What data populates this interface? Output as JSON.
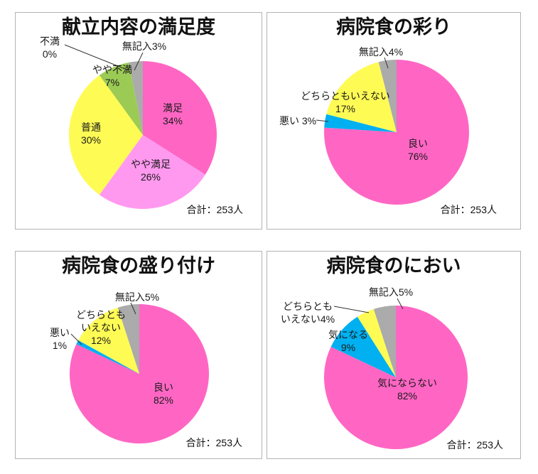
{
  "accent_colors": {
    "pink": "#FF66C4",
    "light_pink": "#FF99F0",
    "yellow": "#FFFB55",
    "green": "#9BCB55",
    "blue": "#00B0F0",
    "gray": "#ABABAB"
  },
  "chart_data": [
    {
      "type": "pie",
      "title": "献立内容の満足度",
      "total": "合計：253人",
      "legend_position": "none",
      "slices": [
        {
          "name": "manzoku",
          "label": "満足",
          "value": 34,
          "color": "#FF66C4",
          "lines": [
            "満足",
            "34%"
          ]
        },
        {
          "name": "yaya-manzoku",
          "label": "やや満足",
          "value": 26,
          "color": "#FF99F0",
          "lines": [
            "やや満足",
            "26%"
          ]
        },
        {
          "name": "futsu",
          "label": "普通",
          "value": 30,
          "color": "#FFFB55",
          "lines": [
            "普通",
            "30%"
          ]
        },
        {
          "name": "yaya-fuman",
          "label": "やや不満",
          "value": 7,
          "color": "#9BCB55",
          "lines": [
            "やや不満",
            "7%"
          ]
        },
        {
          "name": "fuman",
          "label": "不満",
          "value": 0,
          "color": "#00B0F0",
          "lines": [
            "不満",
            "0%"
          ]
        },
        {
          "name": "mukinyu",
          "label": "無記入",
          "value": 3,
          "color": "#ABABAB",
          "lines": [
            "無記入3%"
          ]
        }
      ]
    },
    {
      "type": "pie",
      "title": "病院食の彩り",
      "total": "合計：253人",
      "legend_position": "none",
      "slices": [
        {
          "name": "yoi",
          "label": "良い",
          "value": 76,
          "color": "#FF66C4",
          "lines": [
            "良い",
            "76%"
          ]
        },
        {
          "name": "warui",
          "label": "悪い",
          "value": 3,
          "color": "#00B0F0",
          "lines": [
            "悪い 3%"
          ]
        },
        {
          "name": "dochira",
          "label": "どちらともいえない",
          "value": 17,
          "color": "#FFFB55",
          "lines": [
            "どちらともいえない",
            "17%"
          ]
        },
        {
          "name": "mukinyu",
          "label": "無記入",
          "value": 4,
          "color": "#ABABAB",
          "lines": [
            "無記入4%"
          ]
        }
      ]
    },
    {
      "type": "pie",
      "title": "病院食の盛り付け",
      "total": "合計：253人",
      "legend_position": "none",
      "slices": [
        {
          "name": "yoi",
          "label": "良い",
          "value": 82,
          "color": "#FF66C4",
          "lines": [
            "良い",
            "82%"
          ]
        },
        {
          "name": "warui",
          "label": "悪い",
          "value": 1,
          "color": "#00B0F0",
          "lines": [
            "悪い",
            "1%"
          ]
        },
        {
          "name": "dochira",
          "label": "どちらともいえない",
          "value": 12,
          "color": "#FFFB55",
          "lines": [
            "どちらとも",
            "いえない",
            "12%"
          ]
        },
        {
          "name": "mukinyu",
          "label": "無記入",
          "value": 5,
          "color": "#ABABAB",
          "lines": [
            "無記入5%"
          ]
        }
      ]
    },
    {
      "type": "pie",
      "title": "病院食のにおい",
      "total": "合計：253人",
      "legend_position": "none",
      "slices": [
        {
          "name": "ki-ni-naranai",
          "label": "気にならない",
          "value": 82,
          "color": "#FF66C4",
          "lines": [
            "気にならない",
            "82%"
          ]
        },
        {
          "name": "ki-ni-naru",
          "label": "気になる",
          "value": 9,
          "color": "#00B0F0",
          "lines": [
            "気になる",
            "9%"
          ]
        },
        {
          "name": "dochira",
          "label": "どちらともいえない",
          "value": 4,
          "color": "#FFFB55",
          "lines": [
            "どちらとも",
            "いえない4%"
          ]
        },
        {
          "name": "mukinyu",
          "label": "無記入",
          "value": 5,
          "color": "#ABABAB",
          "lines": [
            "無記入5%"
          ]
        }
      ]
    }
  ]
}
